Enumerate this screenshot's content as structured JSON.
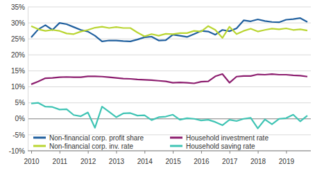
{
  "chart_data": {
    "type": "line",
    "categories": [
      "2010",
      null,
      null,
      null,
      "2011",
      null,
      null,
      null,
      "2012",
      null,
      null,
      null,
      "2013",
      null,
      null,
      null,
      "2014",
      null,
      null,
      null,
      "2015",
      null,
      null,
      null,
      "2016",
      null,
      null,
      null,
      "2017",
      null,
      null,
      null,
      "2018",
      null,
      null,
      null,
      "2019",
      null,
      null,
      null
    ],
    "series": [
      {
        "name": "Non-financial corp. profit share",
        "color": "#1f5f9e",
        "values": [
          25.5,
          28,
          29.3,
          27.8,
          30,
          29.6,
          28.7,
          27.8,
          27.3,
          26,
          24.2,
          24.5,
          24.5,
          24.3,
          24.2,
          24.8,
          25.5,
          25.7,
          24.5,
          24.6,
          26.3,
          26,
          25.6,
          26.5,
          27.5,
          27.3,
          26.3,
          27.8,
          27.4,
          28.3,
          30.8,
          30.5,
          31.1,
          30.6,
          30.3,
          30.2,
          31,
          31.2,
          31.5,
          30.3
        ]
      },
      {
        "name": "Household investment rate",
        "color": "#8c1d6e",
        "values": [
          10.8,
          11.7,
          12.7,
          12.8,
          13,
          13.1,
          13,
          13,
          13.3,
          13.3,
          13.2,
          13,
          12.8,
          12.6,
          12.5,
          12.3,
          12.2,
          12.1,
          11.9,
          11.7,
          11.3,
          11.4,
          11.3,
          11.1,
          11.6,
          11.7,
          13.3,
          14,
          11.3,
          13.2,
          13.4,
          13.4,
          13.9,
          13.8,
          14,
          13.8,
          13.8,
          13.6,
          13.5,
          13.2
        ]
      },
      {
        "name": "Non-financial corp. inv. rate",
        "color": "#b9d531",
        "values": [
          29,
          28,
          27.5,
          27.8,
          27.5,
          26.7,
          26.5,
          27.3,
          27.8,
          28.5,
          28.8,
          28.4,
          28.7,
          28.4,
          28.4,
          27,
          25.8,
          26.5,
          26,
          26.6,
          26.5,
          26.8,
          26.8,
          27.5,
          27.3,
          29,
          27.8,
          25.3,
          28.8,
          26.5,
          27.5,
          28.2,
          27.3,
          27.8,
          28.2,
          28,
          28.3,
          27.8,
          28,
          27.6
        ]
      },
      {
        "name": "Household saving rate",
        "color": "#3fc4b4",
        "values": [
          4.8,
          5,
          3.8,
          3.7,
          2.9,
          3,
          1.2,
          0.8,
          2,
          -2.8,
          3.8,
          2.2,
          0.5,
          1.7,
          1.8,
          1,
          1.1,
          -0.4,
          0.5,
          0.7,
          1.3,
          -0.3,
          0.2,
          0,
          -0.5,
          -0.3,
          -1,
          -2,
          -0.3,
          -0.7,
          0,
          0.3,
          -3,
          -0.2,
          -1.7,
          0,
          0.2,
          1.3,
          -0.8,
          1
        ]
      }
    ],
    "ylim": [
      -10,
      35
    ],
    "yticks": [
      {
        "value": -10,
        "label": "-10%"
      },
      {
        "value": -5,
        "label": "-5%"
      },
      {
        "value": 0,
        "label": "0%"
      },
      {
        "value": 5,
        "label": "5%"
      },
      {
        "value": 10,
        "label": "10%"
      },
      {
        "value": 15,
        "label": "15%"
      },
      {
        "value": 20,
        "label": "20%"
      },
      {
        "value": 25,
        "label": "25%"
      },
      {
        "value": 30,
        "label": "30%"
      },
      {
        "value": 35,
        "label": "35%"
      }
    ],
    "grid": true,
    "legend": "bottom"
  }
}
